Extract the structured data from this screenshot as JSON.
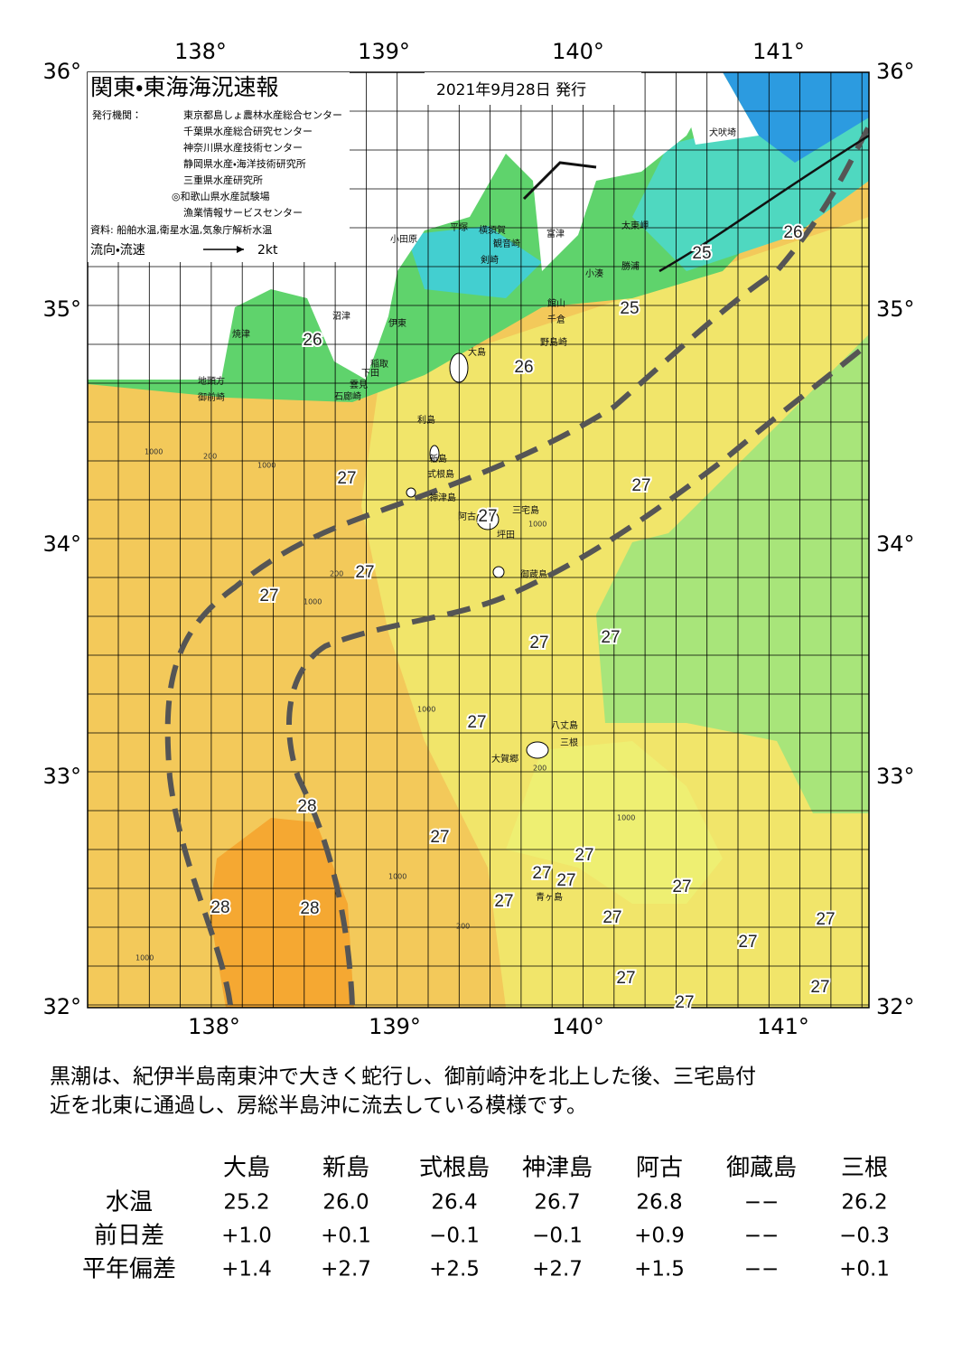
{
  "map": {
    "title": "関東・東海海況速報",
    "date": "2021年9月28日 発行",
    "issuer_label": "発行機関：",
    "issuers": [
      "東京都島しょ農林水産総合センター",
      "千葉県水産総合研究センター",
      "神奈川県水産技術センター",
      "静岡県水産・海洋技術研究所",
      "三重県水産研究所",
      "◎和歌山県水産試験場",
      "漁業情報サービスセンター"
    ],
    "source": "資料: 船舶水温,衛星水温,気象庁解析水温",
    "legend_label": "流向・流速",
    "legend_unit": "2kt",
    "lat_labels": [
      "36°",
      "35°",
      "34°",
      "33°",
      "32°"
    ],
    "lon_labels": [
      "138°",
      "139°",
      "140°",
      "141°"
    ],
    "temperature_labels": [
      "26",
      "25",
      "26",
      "25",
      "26",
      "27",
      "27",
      "27",
      "27",
      "27",
      "27",
      "27",
      "27",
      "28",
      "27",
      "27",
      "27",
      "27",
      "27",
      "27",
      "28",
      "28",
      "27",
      "27",
      "27",
      "27",
      "27",
      "27"
    ],
    "place_names": [
      "犬吠埼",
      "太東岬",
      "富津",
      "勝浦",
      "小湊",
      "館山",
      "千倉",
      "野島崎",
      "小田原",
      "平塚",
      "横須賀",
      "観音崎",
      "剣崎",
      "伊東",
      "沼津",
      "焼津",
      "大島",
      "稲取",
      "下田",
      "雲見",
      "石廊崎",
      "地頭方",
      "御前崎",
      "利島",
      "新島",
      "式根島",
      "神津島",
      "阿古",
      "三宅島",
      "坪田",
      "御蔵島",
      "八丈島",
      "三根",
      "大賀郷",
      "青ヶ島"
    ],
    "contour_labels": [
      "1000",
      "200",
      "1000",
      "200",
      "1000",
      "1000",
      "200",
      "1000",
      "1000",
      "200",
      "1000",
      "1000"
    ]
  },
  "description": [
    "黒潮は、紀伊半島南東沖で大きく蛇行し、御前崎沖を北上した後、三宅島付",
    "近を北東に通過し、房総半島沖に流去している模様です。"
  ],
  "table": {
    "header": [
      "大島",
      "新島",
      "式根島",
      "神津島",
      "阿古",
      "御蔵島",
      "三根"
    ],
    "rows": [
      [
        "水温",
        "25.2",
        "26.0",
        "26.4",
        "26.7",
        "26.8",
        "−−",
        "26.2"
      ],
      [
        "前日差",
        "+1.0",
        "+0.1",
        "−0.1",
        "−0.1",
        "+0.9",
        "−−",
        "−0.3"
      ],
      [
        "平年偏差",
        "+1.4",
        "+2.7",
        "+2.5",
        "+2.7",
        "+1.5",
        "−−",
        "+0.1"
      ]
    ]
  }
}
